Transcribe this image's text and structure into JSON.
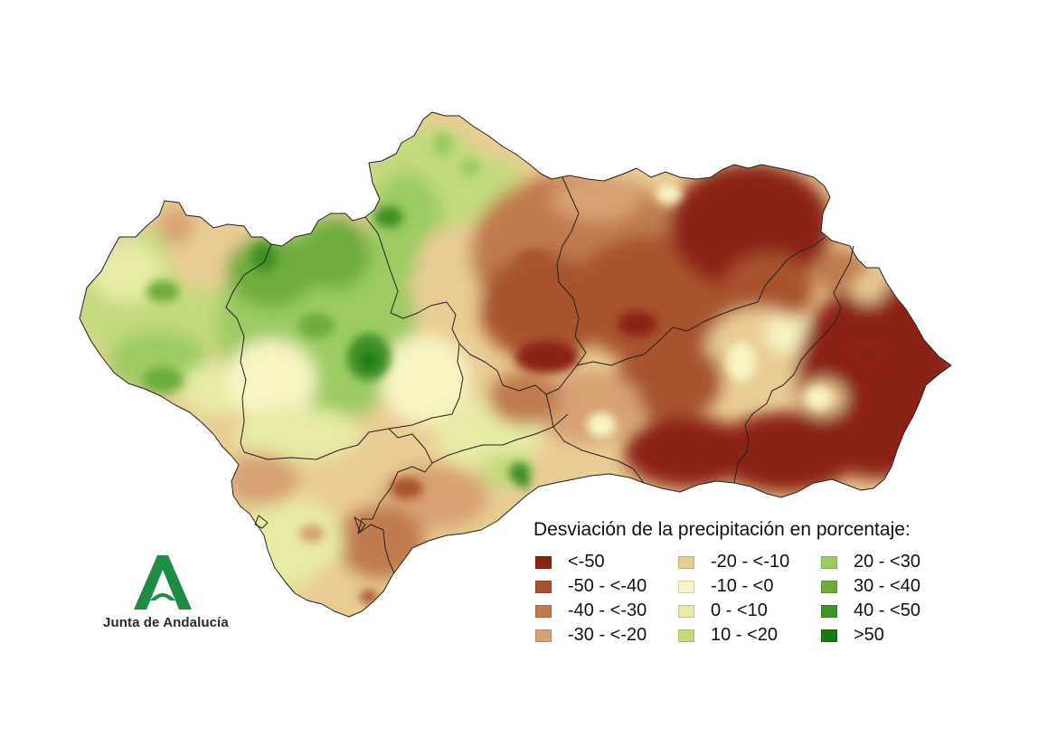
{
  "legend": {
    "title": "Desviación de la precipitación en porcentaje:",
    "classes": [
      {
        "label": "<-50",
        "color": "#8b2315"
      },
      {
        "label": "-50 - <-40",
        "color": "#a8532e"
      },
      {
        "label": "-40 - <-30",
        "color": "#c07a4e"
      },
      {
        "label": "-30 - <-20",
        "color": "#d7a173"
      },
      {
        "label": "-20 - <-10",
        "color": "#e9cc94"
      },
      {
        "label": "-10 - <0",
        "color": "#f8f4c4"
      },
      {
        "label": "0 - <10",
        "color": "#e7eba5"
      },
      {
        "label": "10 - <20",
        "color": "#c3da7e"
      },
      {
        "label": "20 - <30",
        "color": "#9ccb63"
      },
      {
        "label": "30 - <40",
        "color": "#6eac3c"
      },
      {
        "label": "40 - <50",
        "color": "#3f9128"
      },
      {
        "label": ">50",
        "color": "#197a14"
      }
    ]
  },
  "logo": {
    "text": "Junta de Andalucía",
    "color": "#1e8c45",
    "icon": "junta-andalucia-a-icon"
  }
}
